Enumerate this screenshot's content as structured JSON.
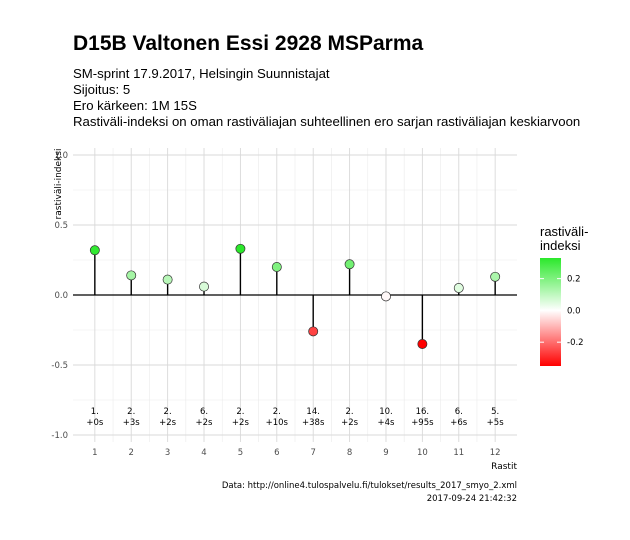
{
  "header": {
    "title": "D15B Valtonen Essi 2928 MSParma",
    "subtitle_lines": [
      "SM-sprint 17.9.2017, Helsingin Suunnistajat",
      "Sijoitus: 5",
      "Ero kärkeen: 1M 15S",
      "Rastiväli-indeksi on oman rastiväliajan suhteellinen ero sarjan rastiväliajan keskiarvoon"
    ]
  },
  "chart_data": {
    "type": "scatter",
    "style": "lollipop",
    "x": [
      1,
      2,
      3,
      4,
      5,
      6,
      7,
      8,
      9,
      10,
      11,
      12
    ],
    "values": [
      0.32,
      0.14,
      0.11,
      0.06,
      0.33,
      0.2,
      -0.26,
      0.22,
      -0.01,
      -0.35,
      0.05,
      0.13
    ],
    "point_labels": [
      [
        "1.",
        "+0s"
      ],
      [
        "2.",
        "+3s"
      ],
      [
        "2.",
        "+2s"
      ],
      [
        "6.",
        "+2s"
      ],
      [
        "2.",
        "+2s"
      ],
      [
        "2.",
        "+10s"
      ],
      [
        "14.",
        "+38s"
      ],
      [
        "2.",
        "+2s"
      ],
      [
        "10.",
        "+4s"
      ],
      [
        "16.",
        "+95s"
      ],
      [
        "6.",
        "+6s"
      ],
      [
        "5.",
        "+5s"
      ]
    ],
    "xlabel": "Rastit",
    "ylabel": "rastiväli-indeksi",
    "xticks": [
      "1",
      "2",
      "3",
      "4",
      "5",
      "6",
      "7",
      "8",
      "9",
      "10",
      "11",
      "12"
    ],
    "yticks": [
      "1.0",
      "0.5",
      "0.0",
      "-0.5",
      "-1.0"
    ],
    "ylim": [
      -1.05,
      1.05
    ],
    "grid": true,
    "legend": {
      "title_lines": [
        "rastiväli-",
        "indeksi"
      ],
      "ticks": [
        "0.2",
        "0.0",
        "-0.2"
      ],
      "tick_values": [
        0.2,
        0.0,
        -0.2
      ],
      "range": [
        -0.35,
        0.33
      ],
      "position": "right",
      "colors": {
        "low": "#ff0000",
        "mid": "#ffffff",
        "high": "#2be82b"
      }
    }
  },
  "caption": {
    "line1": "Data: http://online4.tulospalvelu.fi/tulokset/results_2017_smyo_2.xml",
    "line2": "2017-09-24 21:42:32"
  }
}
